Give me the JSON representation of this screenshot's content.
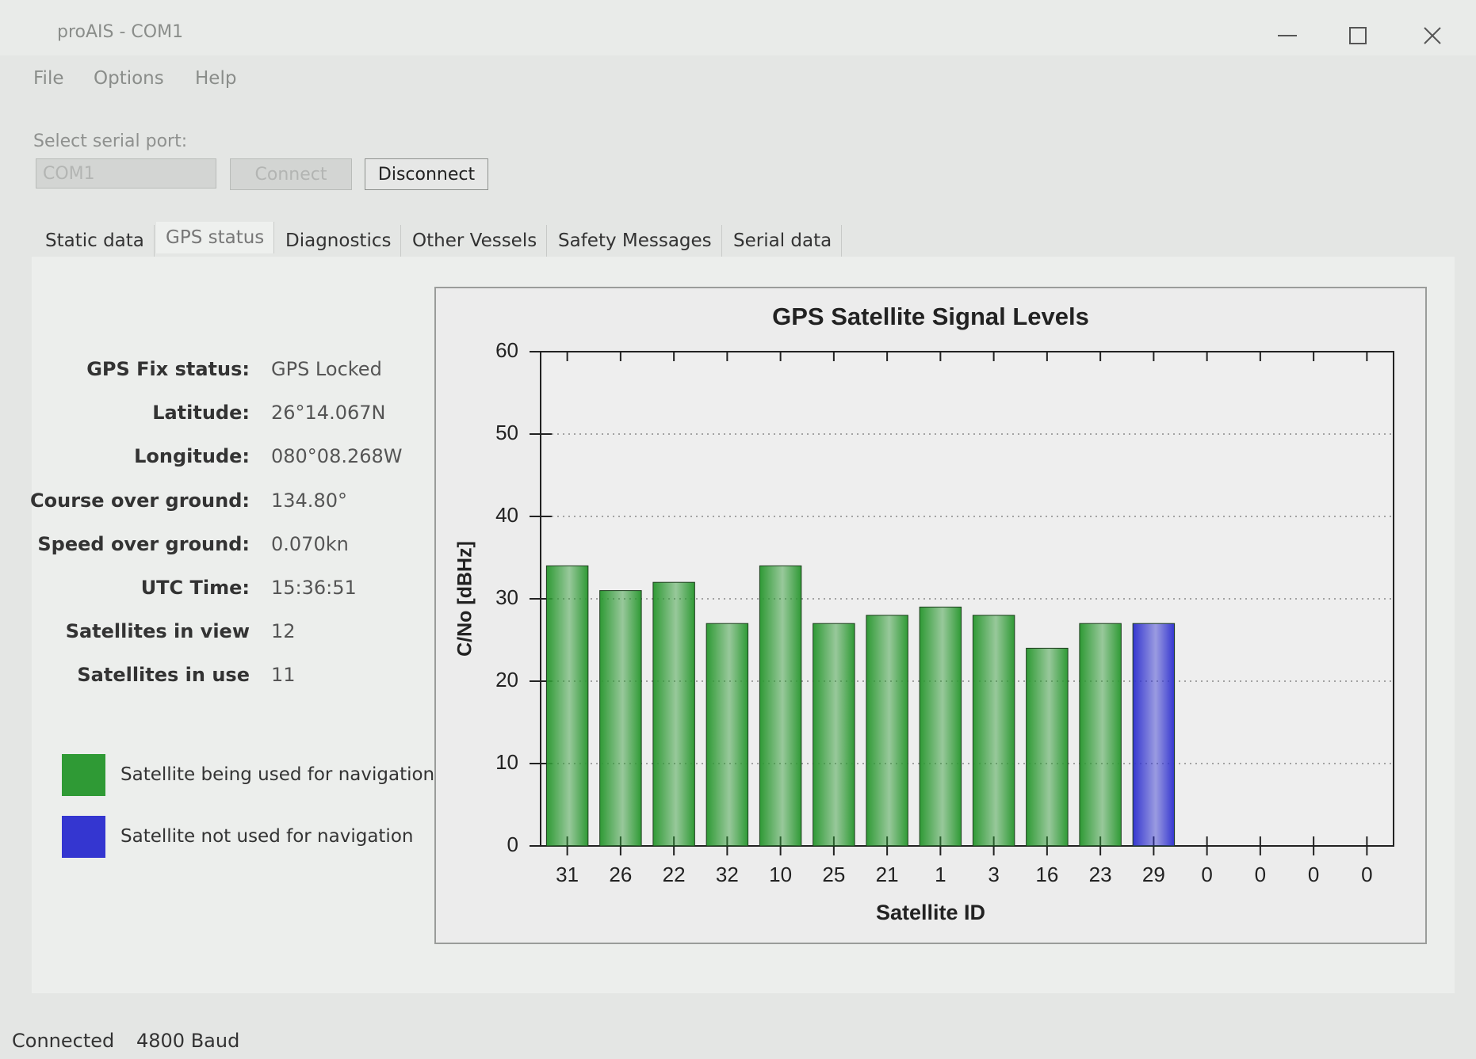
{
  "window": {
    "title": "proAIS - COM1"
  },
  "menu": [
    "File",
    "Options",
    "Help"
  ],
  "port": {
    "label": "Select serial port:",
    "selected": "COM1",
    "connect": "Connect",
    "disconnect": "Disconnect"
  },
  "tabs": [
    "Static data",
    "GPS status",
    "Diagnostics",
    "Other Vessels",
    "Safety Messages",
    "Serial data"
  ],
  "selected_tab": 1,
  "status_fields": [
    {
      "label": "GPS Fix status:",
      "value": "GPS Locked"
    },
    {
      "label": "Latitude:",
      "value": "26°14.067N"
    },
    {
      "label": "Longitude:",
      "value": "080°08.268W"
    },
    {
      "label": "Course over ground:",
      "value": "134.80°"
    },
    {
      "label": "Speed over ground:",
      "value": "0.070kn"
    },
    {
      "label": "UTC Time:",
      "value": "15:36:51"
    },
    {
      "label": "Satellites in view",
      "value": "12"
    },
    {
      "label": "Satellites in use",
      "value": "11"
    }
  ],
  "legend": [
    {
      "label": "Satellite being used for navigation",
      "color": "#2f9a35"
    },
    {
      "label": "Satellite not used for navigation",
      "color": "#3436d0"
    }
  ],
  "status_bar": [
    "Connected",
    "4800 Baud"
  ],
  "chart_data": {
    "type": "bar",
    "title": "GPS Satellite Signal Levels",
    "x_label": "Satellite ID",
    "y_label": "C/No [dBHz]",
    "categories": [
      "31",
      "26",
      "22",
      "32",
      "10",
      "25",
      "21",
      "1",
      "3",
      "16",
      "23",
      "29",
      "0",
      "0",
      "0",
      "0"
    ],
    "values": [
      34,
      31,
      32,
      27,
      34,
      27,
      28,
      29,
      28,
      24,
      27,
      27,
      0,
      0,
      0,
      0
    ],
    "colors": [
      "#2f9a35",
      "#2f9a35",
      "#2f9a35",
      "#2f9a35",
      "#2f9a35",
      "#2f9a35",
      "#2f9a35",
      "#2f9a35",
      "#2f9a35",
      "#2f9a35",
      "#2f9a35",
      "#3436d0",
      "#2f9a35",
      "#2f9a35",
      "#2f9a35",
      "#2f9a35"
    ],
    "ylim": [
      0,
      60
    ],
    "yticks": [
      0,
      10,
      20,
      30,
      40,
      50,
      60
    ],
    "grid": true
  }
}
